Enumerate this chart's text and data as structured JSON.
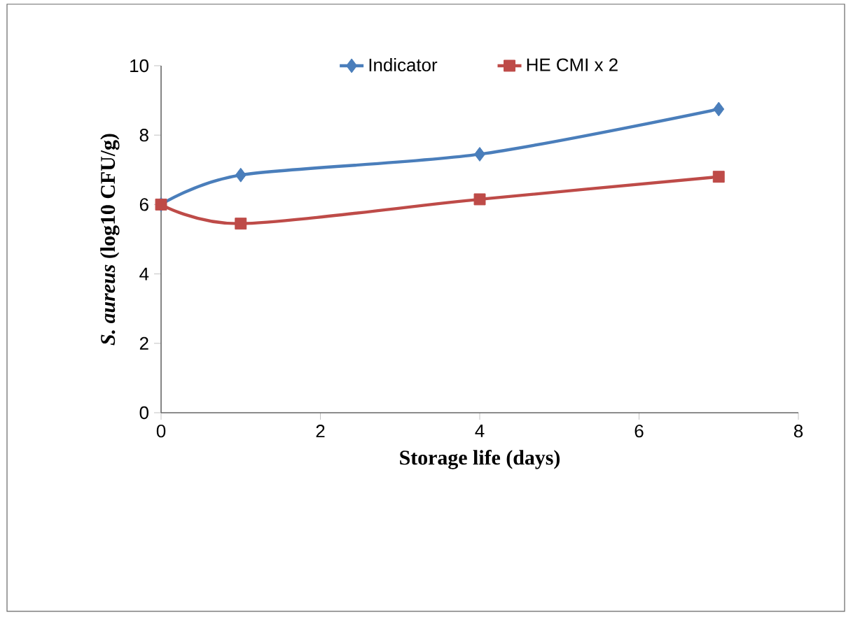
{
  "chart_data": {
    "type": "line",
    "xlabel": "Storage life (days)",
    "ylabel": "*S. aureus* (log10 CFU/g)",
    "xlim": [
      0,
      8
    ],
    "xticks": [
      0,
      2,
      4,
      6,
      8
    ],
    "ylim": [
      0,
      10
    ],
    "yticks": [
      0,
      2,
      4,
      6,
      8,
      10
    ],
    "grid": false,
    "legend": "top",
    "series": [
      {
        "name": "Indicator",
        "color": "#4a7ebb",
        "marker": "diamond",
        "x": [
          0,
          1,
          4,
          7
        ],
        "values": [
          6,
          6.85,
          7.45,
          8.75
        ]
      },
      {
        "name": "HE CMI x 2",
        "color": "#be4b48",
        "marker": "square",
        "x": [
          0,
          1,
          4,
          7
        ],
        "values": [
          6,
          5.45,
          6.15,
          6.8
        ]
      }
    ]
  }
}
